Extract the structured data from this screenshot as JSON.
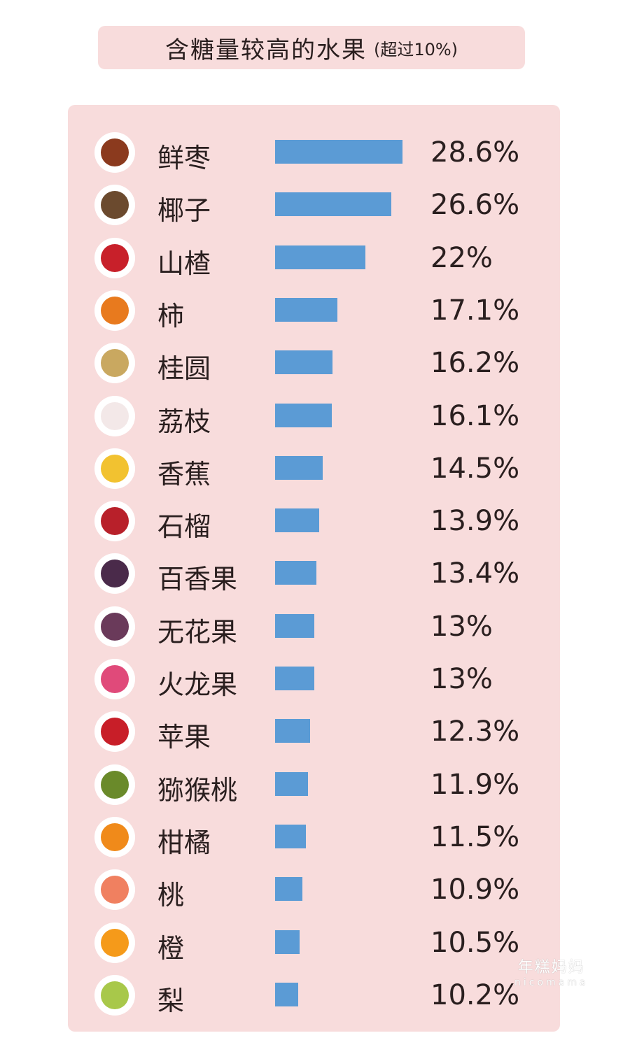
{
  "chart_data": {
    "type": "bar",
    "orientation": "horizontal",
    "title": "含糖量较高的水果",
    "subtitle": "(超过10%)",
    "categories": [
      "鲜枣",
      "椰子",
      "山楂",
      "柿",
      "桂圆",
      "荔枝",
      "香蕉",
      "石榴",
      "百香果",
      "无花果",
      "火龙果",
      "苹果",
      "猕猴桃",
      "柑橘",
      "桃",
      "橙",
      "梨"
    ],
    "values": [
      28.6,
      26.6,
      22,
      17.1,
      16.2,
      16.1,
      14.5,
      13.9,
      13.4,
      13,
      13,
      12.3,
      11.9,
      11.5,
      10.9,
      10.5,
      10.2
    ],
    "labels": [
      "28.6%",
      "26.6%",
      "22%",
      "17.1%",
      "16.2%",
      "16.1%",
      "14.5%",
      "13.9%",
      "13.4%",
      "13%",
      "13%",
      "12.3%",
      "11.9%",
      "11.5%",
      "10.9%",
      "10.5%",
      "10.2%"
    ],
    "icons": [
      "jujube-icon",
      "coconut-icon",
      "hawthorn-icon",
      "persimmon-icon",
      "longan-icon",
      "lychee-icon",
      "banana-icon",
      "pomegranate-icon",
      "passion-fruit-icon",
      "fig-icon",
      "dragon-fruit-icon",
      "apple-icon",
      "kiwi-icon",
      "tangerine-icon",
      "peach-icon",
      "orange-icon",
      "pear-icon"
    ],
    "icon_colors": [
      "#8b3a1e",
      "#6b4a2e",
      "#c8202a",
      "#e87a1e",
      "#c9a860",
      "#f3e8e8",
      "#f2c230",
      "#b8202a",
      "#4a2a4a",
      "#6a3a5a",
      "#e04a7a",
      "#c81e28",
      "#6a8a2a",
      "#f08a1a",
      "#f08060",
      "#f59a1a",
      "#a8c84a"
    ],
    "bar_color": "#5b9bd5",
    "background": "#f8dcdc"
  },
  "watermark": {
    "cn": "年糕妈妈",
    "en": "nicomama"
  }
}
